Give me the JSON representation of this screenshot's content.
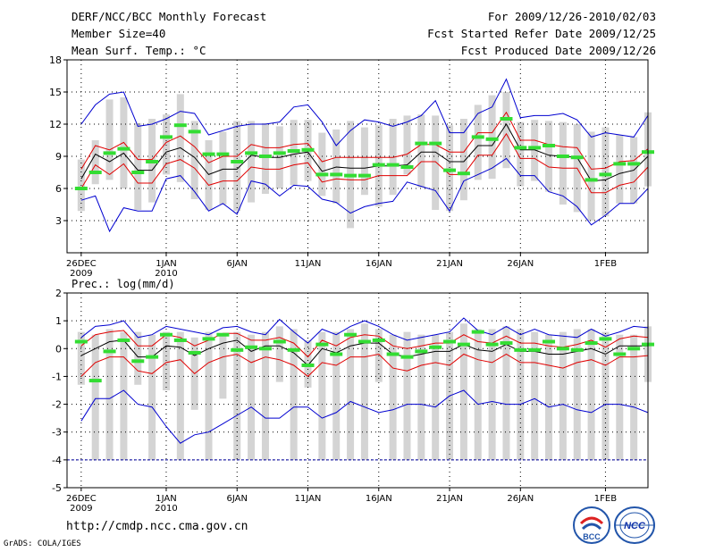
{
  "header": {
    "title": "DERF/NCC/BCC Monthly Forecast",
    "member_size": "Member Size=40",
    "variable": "Mean Surf. Temp.: °C",
    "forecast_for": "For 2009/12/26-2010/02/03",
    "refer_date": "Fcst Started Refer Date 2009/12/25",
    "produced_date": "Fcst Produced Date 2009/12/26"
  },
  "footer": {
    "url": "http://cmdp.ncc.cma.gov.cn",
    "credit": "GrADS: COLA/IGES",
    "logo_left": "BCC",
    "logo_right": "NCC"
  },
  "colors": {
    "bar": "#d4d4d4",
    "mean": "#000000",
    "spread": "#e00000",
    "extreme": "#0000d0",
    "marker": "#33dd33",
    "dash": "#0000a0"
  },
  "chart_data": [
    {
      "type": "line",
      "title": "Mean Surf. Temp.: °C",
      "ylim": [
        0,
        18
      ],
      "yticks": [
        3,
        6,
        9,
        12,
        15,
        18
      ],
      "xlim": [
        -1,
        40
      ],
      "x_ticks": [
        {
          "x": 0,
          "label": "26DEC",
          "year": "2009"
        },
        {
          "x": 6,
          "label": "1JAN",
          "year": "2010"
        },
        {
          "x": 11,
          "label": "6JAN",
          "year": ""
        },
        {
          "x": 16,
          "label": "11JAN",
          "year": ""
        },
        {
          "x": 21,
          "label": "16JAN",
          "year": ""
        },
        {
          "x": 26,
          "label": "21JAN",
          "year": ""
        },
        {
          "x": 31,
          "label": "26JAN",
          "year": ""
        },
        {
          "x": 37,
          "label": "1FEB",
          "year": ""
        }
      ],
      "mean": [
        6.9,
        9.2,
        8.5,
        9.3,
        7.7,
        7.7,
        9.4,
        9.8,
        8.9,
        7.3,
        7.8,
        7.8,
        9.1,
        8.9,
        8.9,
        9.2,
        9.4,
        7.6,
        8.0,
        7.9,
        7.9,
        8.1,
        8.1,
        8.2,
        9.4,
        9.4,
        8.5,
        8.5,
        10.0,
        10.0,
        12.0,
        9.6,
        9.6,
        9.1,
        9.0,
        8.9,
        6.7,
        6.8,
        7.4,
        7.7,
        9.0
      ],
      "upper": [
        7.8,
        10.0,
        9.6,
        10.3,
        8.7,
        8.7,
        10.3,
        10.9,
        9.9,
        8.4,
        9.0,
        9.0,
        10.1,
        9.8,
        9.8,
        10.1,
        10.2,
        8.5,
        8.9,
        8.9,
        8.9,
        8.9,
        8.9,
        9.2,
        10.1,
        10.1,
        9.4,
        9.4,
        11.2,
        11.2,
        13.1,
        10.5,
        10.5,
        10.1,
        9.9,
        9.8,
        7.8,
        7.9,
        8.5,
        8.6,
        9.7
      ],
      "lower": [
        6.0,
        8.2,
        7.3,
        8.3,
        6.5,
        6.5,
        8.3,
        8.7,
        7.9,
        6.3,
        6.7,
        6.7,
        8.0,
        7.8,
        7.8,
        8.2,
        8.4,
        6.6,
        6.9,
        6.8,
        6.8,
        7.2,
        7.2,
        7.2,
        8.5,
        8.5,
        7.3,
        7.3,
        9.1,
        9.1,
        11.1,
        8.8,
        8.8,
        8.0,
        7.9,
        7.9,
        5.6,
        5.6,
        6.3,
        6.6,
        8.0
      ],
      "max": [
        12.0,
        13.8,
        14.8,
        15.0,
        11.8,
        12.0,
        12.5,
        13.2,
        13.0,
        11.0,
        11.4,
        11.8,
        12.0,
        12.0,
        12.2,
        13.6,
        13.8,
        12.2,
        10.0,
        11.4,
        12.4,
        12.2,
        11.8,
        12.2,
        12.8,
        14.2,
        11.2,
        11.2,
        13.0,
        13.6,
        16.2,
        12.6,
        12.8,
        12.8,
        13.0,
        12.4,
        10.8,
        11.2,
        11.0,
        10.8,
        12.8
      ],
      "min": [
        4.9,
        5.3,
        2.0,
        4.2,
        3.9,
        3.9,
        6.9,
        7.2,
        5.7,
        3.9,
        4.6,
        3.6,
        6.7,
        6.4,
        5.3,
        6.3,
        6.2,
        5.0,
        4.7,
        3.7,
        4.3,
        4.6,
        4.8,
        6.6,
        6.2,
        5.8,
        3.9,
        6.7,
        7.3,
        7.9,
        8.8,
        7.2,
        7.2,
        5.7,
        5.3,
        4.3,
        2.6,
        3.5,
        4.6,
        4.6,
        6.0
      ],
      "bar_top": [
        8.7,
        10.5,
        14.3,
        14.5,
        12.1,
        12.5,
        12.9,
        14.8,
        12.3,
        10.5,
        11.3,
        12.3,
        12.3,
        12.1,
        11.8,
        12.4,
        12.4,
        11.2,
        11.5,
        12.3,
        11.7,
        11.9,
        12.5,
        12.8,
        12.9,
        12.8,
        11.9,
        12.5,
        13.8,
        14.7,
        15.0,
        12.2,
        12.4,
        12.3,
        12.2,
        12.0,
        11.3,
        11.7,
        11.0,
        10.8,
        13.1
      ],
      "bar_bottom": [
        3.9,
        6.4,
        6.8,
        6.0,
        4.0,
        4.7,
        7.3,
        6.6,
        5.0,
        4.0,
        4.5,
        3.9,
        4.7,
        5.5,
        6.0,
        6.3,
        6.7,
        5.3,
        4.6,
        2.3,
        5.4,
        4.3,
        5.4,
        7.3,
        6.1,
        4.0,
        3.9,
        4.9,
        6.8,
        6.9,
        7.9,
        6.2,
        6.7,
        5.7,
        4.5,
        3.8,
        3.0,
        3.4,
        4.6,
        4.6,
        6.2
      ],
      "green": [
        6.0,
        7.5,
        9.3,
        9.7,
        7.5,
        8.5,
        10.8,
        11.9,
        11.3,
        9.2,
        9.2,
        8.5,
        9.3,
        9.0,
        9.3,
        9.5,
        9.6,
        7.3,
        7.3,
        7.2,
        7.2,
        8.2,
        8.2,
        8.0,
        10.2,
        10.2,
        7.7,
        7.4,
        10.8,
        10.6,
        12.5,
        9.8,
        9.8,
        10.0,
        9.0,
        8.9,
        6.8,
        7.3,
        8.3,
        8.3,
        9.4
      ]
    },
    {
      "type": "line",
      "title": "Prec.: log(mm/d)",
      "ylim": [
        -5,
        2
      ],
      "yticks": [
        -5,
        -4,
        -3,
        -2,
        -1,
        0,
        1,
        2
      ],
      "xlim": [
        -1,
        40
      ],
      "x_ticks": [
        {
          "x": 0,
          "label": "26DEC",
          "year": "2009"
        },
        {
          "x": 6,
          "label": "1JAN",
          "year": "2010"
        },
        {
          "x": 11,
          "label": "6JAN",
          "year": ""
        },
        {
          "x": 16,
          "label": "11JAN",
          "year": ""
        },
        {
          "x": 21,
          "label": "16JAN",
          "year": ""
        },
        {
          "x": 26,
          "label": "21JAN",
          "year": ""
        },
        {
          "x": 31,
          "label": "26JAN",
          "year": ""
        },
        {
          "x": 37,
          "label": "1FEB",
          "year": ""
        }
      ],
      "baseline": -4,
      "mean": [
        -0.25,
        0.0,
        0.25,
        0.3,
        -0.3,
        -0.3,
        0.1,
        0.05,
        -0.25,
        0.0,
        0.2,
        0.3,
        -0.1,
        0.1,
        0.1,
        -0.15,
        -0.6,
        0.0,
        -0.15,
        0.1,
        0.2,
        0.2,
        -0.2,
        -0.3,
        -0.2,
        -0.1,
        -0.1,
        0.15,
        -0.05,
        -0.1,
        0.15,
        -0.1,
        -0.1,
        -0.2,
        -0.2,
        -0.1,
        0.0,
        -0.2,
        0.1,
        0.1,
        0.1
      ],
      "upper": [
        0.1,
        0.5,
        0.6,
        0.65,
        0.1,
        0.1,
        0.5,
        0.4,
        0.1,
        0.3,
        0.55,
        0.55,
        0.3,
        0.3,
        0.4,
        0.2,
        -0.3,
        0.3,
        0.1,
        0.4,
        0.5,
        0.45,
        0.1,
        0.0,
        0.1,
        0.2,
        0.2,
        0.5,
        0.25,
        0.2,
        0.45,
        0.2,
        0.2,
        0.1,
        0.05,
        0.15,
        0.3,
        0.05,
        0.35,
        0.45,
        0.4
      ],
      "lower": [
        -1.0,
        -0.5,
        -0.3,
        -0.3,
        -0.8,
        -0.9,
        -0.5,
        -0.4,
        -0.9,
        -0.5,
        -0.3,
        -0.2,
        -0.5,
        -0.3,
        -0.4,
        -0.6,
        -1.0,
        -0.5,
        -0.6,
        -0.3,
        -0.3,
        -0.2,
        -0.7,
        -0.8,
        -0.6,
        -0.5,
        -0.6,
        -0.2,
        -0.4,
        -0.5,
        -0.2,
        -0.5,
        -0.5,
        -0.6,
        -0.7,
        -0.5,
        -0.4,
        -0.6,
        -0.3,
        -0.3,
        -0.25
      ],
      "max": [
        0.4,
        0.8,
        0.85,
        1.0,
        0.4,
        0.5,
        0.8,
        0.7,
        0.6,
        0.5,
        0.75,
        0.8,
        0.6,
        0.5,
        1.05,
        0.6,
        0.2,
        0.7,
        0.5,
        0.8,
        1.0,
        0.8,
        0.5,
        0.3,
        0.4,
        0.5,
        0.6,
        1.1,
        0.65,
        0.5,
        0.8,
        0.5,
        0.7,
        0.5,
        0.45,
        0.4,
        0.7,
        0.45,
        0.6,
        0.8,
        0.75
      ],
      "min": [
        -2.6,
        -1.8,
        -1.8,
        -1.5,
        -2.0,
        -2.1,
        -2.8,
        -3.4,
        -3.1,
        -3.0,
        -2.7,
        -2.4,
        -2.1,
        -2.5,
        -2.5,
        -2.1,
        -2.1,
        -2.5,
        -2.3,
        -1.9,
        -2.1,
        -2.3,
        -2.2,
        -2.0,
        -2.0,
        -2.1,
        -1.7,
        -1.5,
        -2.0,
        -1.9,
        -2.0,
        -2.0,
        -1.8,
        -2.1,
        -2.0,
        -2.2,
        -2.3,
        -2.0,
        -2.0,
        -2.1,
        -2.3
      ],
      "bar_top": [
        0.6,
        0.5,
        0.7,
        0.6,
        0.6,
        0.5,
        0.6,
        0.6,
        0.4,
        0.6,
        0.5,
        0.6,
        0.5,
        0.6,
        0.8,
        0.7,
        0.3,
        0.6,
        0.6,
        0.7,
        0.9,
        0.7,
        0.5,
        0.6,
        0.5,
        0.5,
        0.6,
        0.9,
        0.7,
        0.7,
        0.8,
        0.7,
        0.6,
        0.5,
        0.6,
        0.7,
        0.7,
        0.6,
        0.5,
        0.5,
        0.8
      ],
      "bar_bottom": [
        -1.3,
        -4.0,
        -4.0,
        -4.0,
        -1.3,
        -4.0,
        -1.5,
        -4.0,
        -2.2,
        -4.0,
        -1.8,
        -4.0,
        -4.0,
        -4.0,
        -1.2,
        -4.0,
        -1.4,
        -4.0,
        -4.0,
        -4.0,
        -4.0,
        -1.2,
        -4.0,
        -4.0,
        -4.0,
        -4.0,
        -4.0,
        -4.0,
        -4.0,
        -4.0,
        -4.0,
        -4.0,
        -4.0,
        -4.0,
        -4.0,
        -4.0,
        -4.0,
        -4.0,
        -4.0,
        -4.0,
        -1.2
      ],
      "green": [
        0.25,
        -1.15,
        -0.1,
        0.3,
        -0.45,
        -0.3,
        0.5,
        0.3,
        -0.15,
        0.35,
        0.5,
        -0.05,
        0.05,
        0.0,
        0.25,
        -0.05,
        -0.6,
        0.15,
        -0.2,
        0.5,
        0.25,
        0.3,
        -0.2,
        -0.3,
        -0.1,
        0.05,
        0.25,
        0.15,
        0.6,
        0.15,
        0.2,
        -0.05,
        -0.05,
        0.25,
        0.0,
        -0.05,
        0.2,
        0.35,
        -0.2,
        0.0,
        0.15
      ]
    }
  ]
}
